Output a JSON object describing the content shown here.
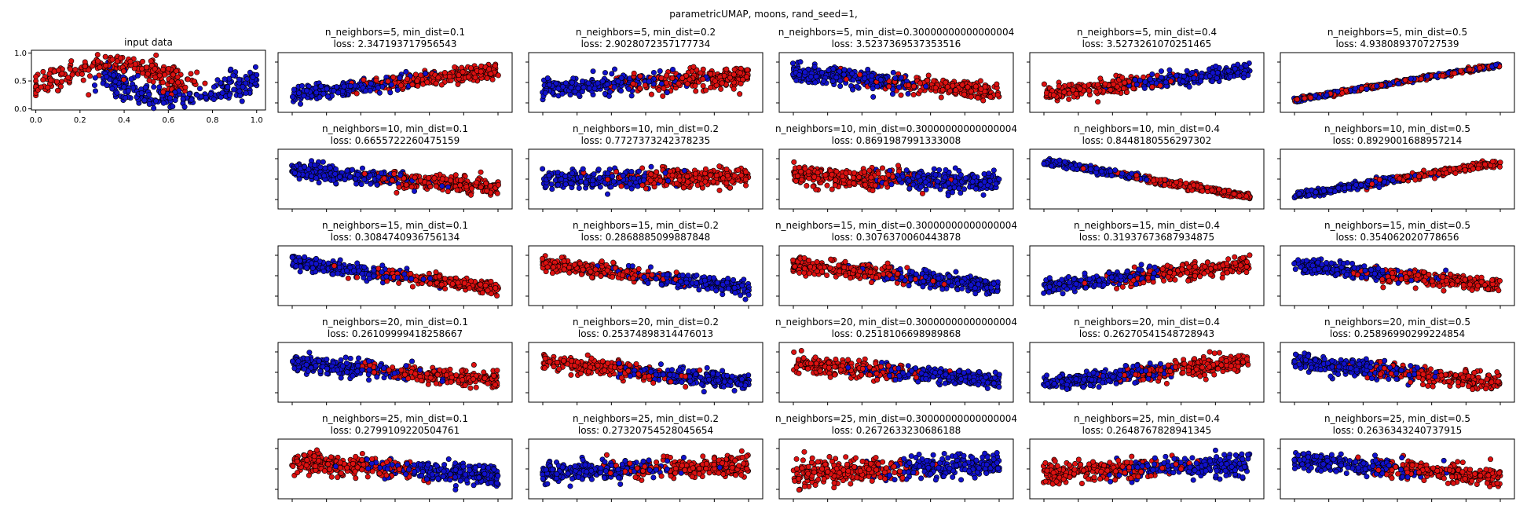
{
  "figure_title": "parametricUMAP, moons, rand_seed=1,",
  "colors": {
    "class0": "#dd1111",
    "class1": "#1111cc",
    "edge": "#000000"
  },
  "chart_data": {
    "type": "scatter",
    "input_panel": {
      "title": "input data",
      "xticks": [
        "0.0",
        "0.2",
        "0.4",
        "0.6",
        "0.8",
        "1.0"
      ],
      "yticks": [
        "0.0",
        "0.5",
        "1.0"
      ],
      "xlim": [
        -0.02,
        1.04
      ],
      "ylim": [
        -0.02,
        1.05
      ],
      "shape": "moons",
      "series": [
        {
          "name": "",
          "color": "#dd1111",
          "x_range": [
            0.0,
            0.75
          ],
          "y_range": [
            0.3,
            1.0
          ]
        },
        {
          "name": "",
          "color": "#1111cc",
          "x_range": [
            0.25,
            1.0
          ],
          "y_range": [
            0.0,
            0.75
          ]
        }
      ]
    },
    "grid": {
      "min_dist_values": [
        "0.1",
        "0.2",
        "0.30000000000000004",
        "0.4",
        "0.5"
      ],
      "n_neighbors_values": [
        "5",
        "10",
        "15",
        "20",
        "25"
      ],
      "panels": [
        {
          "n_neighbors": "5",
          "min_dist": "0.1",
          "title": "n_neighbors=5, min_dist=0.1",
          "loss": "loss: 2.347193717956543",
          "trend": 0.55,
          "width": 0.45,
          "red_side": "right"
        },
        {
          "n_neighbors": "5",
          "min_dist": "0.2",
          "title": "n_neighbors=5, min_dist=0.2",
          "loss": "loss: 2.9028072357177734",
          "trend": 0.3,
          "width": 0.6,
          "red_side": "right"
        },
        {
          "n_neighbors": "5",
          "min_dist": "0.30000000000000004",
          "title": "n_neighbors=5, min_dist=0.30000000000000004",
          "loss": "loss: 3.5237369537353516",
          "trend": -0.45,
          "width": 0.55,
          "red_side": "right"
        },
        {
          "n_neighbors": "5",
          "min_dist": "0.4",
          "title": "n_neighbors=5, min_dist=0.4",
          "loss": "loss: 3.5273261070251465",
          "trend": 0.6,
          "width": 0.45,
          "red_side": "left"
        },
        {
          "n_neighbors": "5",
          "min_dist": "0.5",
          "title": "n_neighbors=5, min_dist=0.5",
          "loss": "loss: 4.938089370727539",
          "trend": 0.85,
          "width": 0.12,
          "red_side": "mixed"
        },
        {
          "n_neighbors": "10",
          "min_dist": "0.1",
          "title": "n_neighbors=10, min_dist=0.1",
          "loss": "loss: 0.6655722260475159",
          "trend": -0.4,
          "width": 0.5,
          "red_side": "right"
        },
        {
          "n_neighbors": "10",
          "min_dist": "0.2",
          "title": "n_neighbors=10, min_dist=0.2",
          "loss": "loss: 0.7727373242378235",
          "trend": 0.1,
          "width": 0.6,
          "red_side": "right"
        },
        {
          "n_neighbors": "10",
          "min_dist": "0.30000000000000004",
          "title": "n_neighbors=10, min_dist=0.30000000000000004",
          "loss": "loss: 0.8691987991333008",
          "trend": -0.15,
          "width": 0.6,
          "red_side": "left"
        },
        {
          "n_neighbors": "10",
          "min_dist": "0.4",
          "title": "n_neighbors=10, min_dist=0.4",
          "loss": "loss: 0.8448180556297302",
          "trend": -0.85,
          "width": 0.2,
          "red_side": "right"
        },
        {
          "n_neighbors": "10",
          "min_dist": "0.5",
          "title": "n_neighbors=10, min_dist=0.5",
          "loss": "loss: 0.8929001688957214",
          "trend": 0.8,
          "width": 0.2,
          "red_side": "right"
        },
        {
          "n_neighbors": "15",
          "min_dist": "0.1",
          "title": "n_neighbors=15, min_dist=0.1",
          "loss": "loss: 0.3084740936756134",
          "trend": -0.65,
          "width": 0.4,
          "red_side": "right"
        },
        {
          "n_neighbors": "15",
          "min_dist": "0.2",
          "title": "n_neighbors=15, min_dist=0.2",
          "loss": "loss: 0.2868885099887848",
          "trend": -0.6,
          "width": 0.45,
          "red_side": "left"
        },
        {
          "n_neighbors": "15",
          "min_dist": "0.30000000000000004",
          "title": "n_neighbors=15, min_dist=0.30000000000000004",
          "loss": "loss: 0.3076370060443878",
          "trend": -0.55,
          "width": 0.45,
          "red_side": "left"
        },
        {
          "n_neighbors": "15",
          "min_dist": "0.4",
          "title": "n_neighbors=15, min_dist=0.4",
          "loss": "loss: 0.31937673687934875",
          "trend": 0.55,
          "width": 0.45,
          "red_side": "right"
        },
        {
          "n_neighbors": "15",
          "min_dist": "0.5",
          "title": "n_neighbors=15, min_dist=0.5",
          "loss": "loss: 0.354062020778656",
          "trend": -0.5,
          "width": 0.45,
          "red_side": "right"
        },
        {
          "n_neighbors": "20",
          "min_dist": "0.1",
          "title": "n_neighbors=20, min_dist=0.1",
          "loss": "loss: 0.26109999418258667",
          "trend": -0.4,
          "width": 0.5,
          "red_side": "right"
        },
        {
          "n_neighbors": "20",
          "min_dist": "0.2",
          "title": "n_neighbors=20, min_dist=0.2",
          "loss": "loss: 0.25374898314476013",
          "trend": -0.5,
          "width": 0.5,
          "red_side": "left"
        },
        {
          "n_neighbors": "20",
          "min_dist": "0.30000000000000004",
          "title": "n_neighbors=20, min_dist=0.30000000000000004",
          "loss": "loss: 0.2518106698989868",
          "trend": -0.4,
          "width": 0.5,
          "red_side": "left"
        },
        {
          "n_neighbors": "20",
          "min_dist": "0.4",
          "title": "n_neighbors=20, min_dist=0.4",
          "loss": "loss: 0.26270541548728943",
          "trend": 0.55,
          "width": 0.5,
          "red_side": "right"
        },
        {
          "n_neighbors": "20",
          "min_dist": "0.5",
          "title": "n_neighbors=20, min_dist=0.5",
          "loss": "loss: 0.25896990299224854",
          "trend": -0.55,
          "width": 0.5,
          "red_side": "right"
        },
        {
          "n_neighbors": "25",
          "min_dist": "0.1",
          "title": "n_neighbors=25, min_dist=0.1",
          "loss": "loss: 0.2799109220504761",
          "trend": -0.3,
          "width": 0.6,
          "red_side": "left"
        },
        {
          "n_neighbors": "25",
          "min_dist": "0.2",
          "title": "n_neighbors=25, min_dist=0.2",
          "loss": "loss: 0.27320754528045654",
          "trend": 0.15,
          "width": 0.6,
          "red_side": "right"
        },
        {
          "n_neighbors": "25",
          "min_dist": "0.30000000000000004",
          "title": "n_neighbors=25, min_dist=0.30000000000000004",
          "loss": "loss: 0.2672633230686188",
          "trend": 0.2,
          "width": 0.7,
          "red_side": "left"
        },
        {
          "n_neighbors": "25",
          "min_dist": "0.4",
          "title": "n_neighbors=25, min_dist=0.4",
          "loss": "loss: 0.2648767828941345",
          "trend": 0.25,
          "width": 0.65,
          "red_side": "left"
        },
        {
          "n_neighbors": "25",
          "min_dist": "0.5",
          "title": "n_neighbors=25, min_dist=0.5",
          "loss": "loss: 0.2636343240737915",
          "trend": -0.4,
          "width": 0.55,
          "red_side": "right"
        }
      ]
    }
  }
}
